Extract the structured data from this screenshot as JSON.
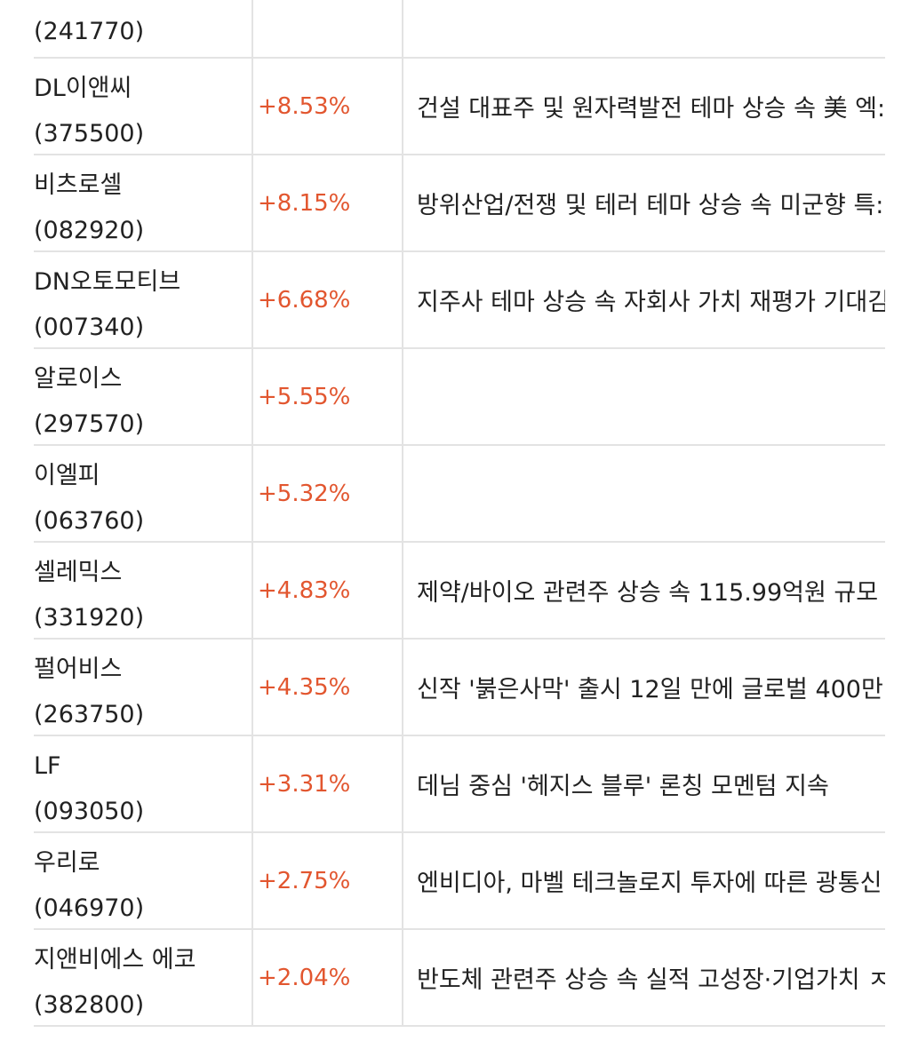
{
  "table": {
    "rows": [
      {
        "name": "",
        "code": "(241770)",
        "rate": "",
        "desc": ""
      },
      {
        "name": "DL이앤씨",
        "code": "(375500)",
        "rate": "+8.53%",
        "desc": "건설 대표주 및 원자력발전 테마 상승 속 美 엑:"
      },
      {
        "name": "비츠로셀",
        "code": "(082920)",
        "rate": "+8.15%",
        "desc": "방위산업/전쟁 및 테러 테마 상승 속 미군향 특:"
      },
      {
        "name": "DN오토모티브",
        "code": "(007340)",
        "rate": "+6.68%",
        "desc": "지주사 테마 상승 속 자회사 가치 재평가 기대김"
      },
      {
        "name": "알로이스",
        "code": "(297570)",
        "rate": "+5.55%",
        "desc": ""
      },
      {
        "name": "이엘피",
        "code": "(063760)",
        "rate": "+5.32%",
        "desc": ""
      },
      {
        "name": "셀레믹스",
        "code": "(331920)",
        "rate": "+4.83%",
        "desc": "제약/바이오 관련주 상승 속 115.99억원 규모"
      },
      {
        "name": "펄어비스",
        "code": "(263750)",
        "rate": "+4.35%",
        "desc": "신작 '붉은사막' 출시 12일 만에 글로벌 400만:"
      },
      {
        "name": "LF",
        "code": "(093050)",
        "rate": "+3.31%",
        "desc": "데님 중심 '헤지스 블루' 론칭 모멘텀 지속"
      },
      {
        "name": "우리로",
        "code": "(046970)",
        "rate": "+2.75%",
        "desc": "엔비디아, 마벨 테크놀로지 투자에 따른 광통신"
      },
      {
        "name": "지앤비에스 에코",
        "code": "(382800)",
        "rate": "+2.04%",
        "desc": "반도체 관련주 상승 속 실적 고성장·기업가치 ㅈ"
      }
    ]
  },
  "colors": {
    "rate_up": "#e2562f",
    "border": "#e3e3e3",
    "text": "#222222"
  }
}
